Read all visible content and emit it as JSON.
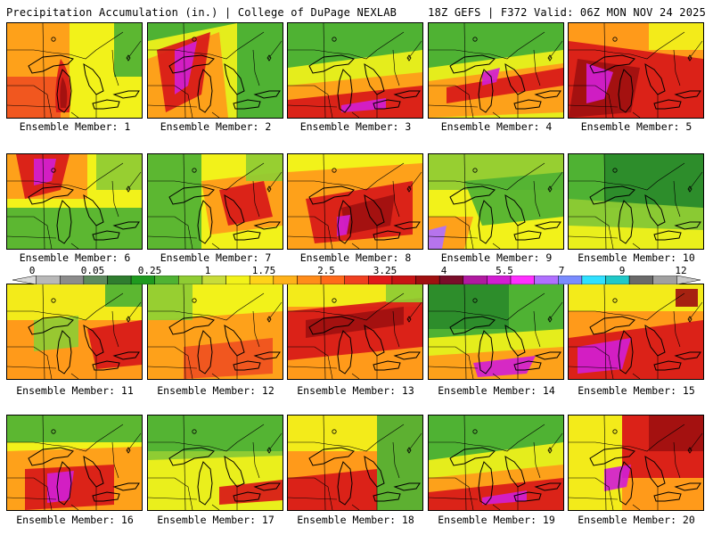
{
  "header": {
    "title_left": "Precipitation Accumulation (in.) | College of DuPage NEXLAB",
    "title_right": "18Z GEFS | F372 Valid: 06Z MON NOV 24 2025"
  },
  "colorbar": {
    "ticks": [
      "0",
      "0.05",
      "0.25",
      "1",
      "1.75",
      "2.5",
      "3.25",
      "4",
      "5.5",
      "7",
      "9",
      "12"
    ],
    "colors": [
      "#d8d8d8",
      "#b8b8b8",
      "#8c8c8c",
      "#5e8a5e",
      "#2f7d2f",
      "#1f9a1f",
      "#4fb233",
      "#8fcc33",
      "#c8dc3a",
      "#f2f21a",
      "#ffd21a",
      "#ffb21a",
      "#ff8c1a",
      "#ff6a1a",
      "#f04020",
      "#e01a1a",
      "#c81414",
      "#a01010",
      "#7a0e2a",
      "#b01aa0",
      "#d21ed2",
      "#ff30ff",
      "#b070ff",
      "#7a8cff",
      "#30e0ff",
      "#20c8c8",
      "#6a6a6a",
      "#a0a0a0",
      "#c8c8c8"
    ]
  },
  "map_colors": {
    "green_dark": "#2a8a2a",
    "green": "#4fb233",
    "green_light": "#8fcc33",
    "yellow": "#f2f21a",
    "orange": "#ff9a1a",
    "red_orange": "#f05020",
    "red": "#d81818",
    "dark_red": "#a01010",
    "magenta": "#d21ed2",
    "purple": "#b070ff",
    "gray": "#7a7a7a"
  },
  "members": [
    {
      "caption": "Ensemble Member: 1",
      "pattern": "red-west"
    },
    {
      "caption": "Ensemble Member: 2",
      "pattern": "magenta-northwest"
    },
    {
      "caption": "Ensemble Member: 3",
      "pattern": "green-north-red-south"
    },
    {
      "caption": "Ensemble Member: 4",
      "pattern": "green-north-red-band"
    },
    {
      "caption": "Ensemble Member: 5",
      "pattern": "red-wide"
    },
    {
      "caption": "Ensemble Member: 6",
      "pattern": "red-northwest"
    },
    {
      "caption": "Ensemble Member: 7",
      "pattern": "yellow-red-center"
    },
    {
      "caption": "Ensemble Member: 8",
      "pattern": "red-center"
    },
    {
      "caption": "Ensemble Member: 9",
      "pattern": "green-yellow"
    },
    {
      "caption": "Ensemble Member: 10",
      "pattern": "green-dominant"
    },
    {
      "caption": "Ensemble Member: 11",
      "pattern": "orange-mixed"
    },
    {
      "caption": "Ensemble Member: 12",
      "pattern": "yellow-orange"
    },
    {
      "caption": "Ensemble Member: 13",
      "pattern": "red-band"
    },
    {
      "caption": "Ensemble Member: 14",
      "pattern": "green-north-magenta-south"
    },
    {
      "caption": "Ensemble Member: 15",
      "pattern": "red-magenta-south"
    },
    {
      "caption": "Ensemble Member: 16",
      "pattern": "magenta-center"
    },
    {
      "caption": "Ensemble Member: 17",
      "pattern": "green-yellow-red-south"
    },
    {
      "caption": "Ensemble Member: 18",
      "pattern": "orange-green"
    },
    {
      "caption": "Ensemble Member: 19",
      "pattern": "green-north-red-south"
    },
    {
      "caption": "Ensemble Member: 20",
      "pattern": "red-northeast"
    }
  ]
}
